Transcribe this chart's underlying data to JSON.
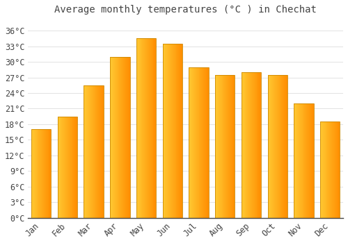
{
  "title": "Average monthly temperatures (°C ) in Chechat",
  "months": [
    "Jan",
    "Feb",
    "Mar",
    "Apr",
    "May",
    "Jun",
    "Jul",
    "Aug",
    "Sep",
    "Oct",
    "Nov",
    "Dec"
  ],
  "values": [
    17,
    19.5,
    25.5,
    31,
    34.5,
    33.5,
    29,
    27.5,
    28,
    27.5,
    22,
    18.5
  ],
  "bar_color_main": "#FFB300",
  "bar_color_light": "#FFD060",
  "bar_edge_color": "#CC8800",
  "background_color": "#FFFFFF",
  "grid_color": "#DDDDDD",
  "text_color": "#444444",
  "ylim": [
    0,
    38
  ],
  "yticks": [
    0,
    3,
    6,
    9,
    12,
    15,
    18,
    21,
    24,
    27,
    30,
    33,
    36
  ],
  "ytick_labels": [
    "0°C",
    "3°C",
    "6°C",
    "9°C",
    "12°C",
    "15°C",
    "18°C",
    "21°C",
    "24°C",
    "27°C",
    "30°C",
    "33°C",
    "36°C"
  ],
  "title_fontsize": 10,
  "tick_fontsize": 8.5,
  "bar_width": 0.75
}
